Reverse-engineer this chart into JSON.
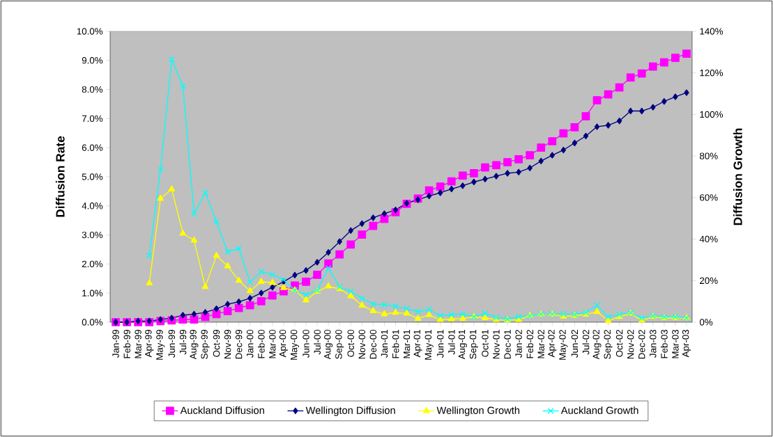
{
  "chart_data": {
    "type": "line",
    "ylabel": "Diffusion Rate",
    "y2label": "Diffusion Growth",
    "categories": [
      "Jan-99",
      "Feb-99",
      "Mar-99",
      "Apr-99",
      "May-99",
      "Jun-99",
      "Jul-99",
      "Aug-99",
      "Sep-99",
      "Oct-99",
      "Nov-99",
      "Dec-99",
      "Jan-00",
      "Feb-00",
      "Mar-00",
      "Apr-00",
      "May-00",
      "Jun-00",
      "Jul-00",
      "Aug-00",
      "Sep-00",
      "Oct-00",
      "Nov-00",
      "Dec-00",
      "Jan-01",
      "Feb-01",
      "Mar-01",
      "Apr-01",
      "May-01",
      "Jun-01",
      "Jul-01",
      "Aug-01",
      "Sep-01",
      "Oct-01",
      "Nov-01",
      "Dec-01",
      "Jan-02",
      "Feb-02",
      "Mar-02",
      "Apr-02",
      "May-02",
      "Jun-02",
      "Jul-02",
      "Aug-02",
      "Sep-02",
      "Oct-02",
      "Nov-02",
      "Dec-02",
      "Jan-03",
      "Feb-03",
      "Mar-03",
      "Apr-03"
    ],
    "series": [
      {
        "name": "Auckland Diffusion",
        "color": "#ff00ff",
        "marker": "square",
        "values": [
          0,
          0,
          0,
          0,
          0.04,
          0.06,
          0.09,
          0.09,
          0.18,
          0.28,
          0.38,
          0.49,
          0.58,
          0.72,
          0.92,
          1.06,
          1.26,
          1.39,
          1.63,
          2.02,
          2.33,
          2.67,
          3.01,
          3.31,
          3.55,
          3.78,
          4.07,
          4.25,
          4.53,
          4.66,
          4.84,
          5.04,
          5.12,
          5.32,
          5.4,
          5.5,
          5.6,
          5.74,
          6.0,
          6.22,
          6.49,
          6.7,
          7.08,
          7.63,
          7.83,
          8.07,
          8.41,
          8.55,
          8.79,
          8.93,
          9.09,
          9.23
        ]
      },
      {
        "name": "Wellington Diffusion",
        "color": "#000080",
        "marker": "diamond",
        "values": [
          0,
          0,
          0.04,
          0.04,
          0.09,
          0.14,
          0.24,
          0.28,
          0.34,
          0.46,
          0.62,
          0.7,
          0.82,
          1.0,
          1.2,
          1.39,
          1.62,
          1.78,
          2.06,
          2.4,
          2.77,
          3.15,
          3.39,
          3.59,
          3.73,
          3.86,
          4.09,
          4.21,
          4.34,
          4.45,
          4.58,
          4.69,
          4.82,
          4.92,
          5.02,
          5.12,
          5.16,
          5.3,
          5.54,
          5.74,
          5.92,
          6.16,
          6.4,
          6.72,
          6.77,
          6.92,
          7.26,
          7.26,
          7.39,
          7.59,
          7.75,
          7.89
        ]
      },
      {
        "name": "Wellington Growth",
        "color": "#ffff00",
        "marker": "triangle",
        "axis": "y2",
        "values": [
          null,
          null,
          null,
          18.8,
          59.5,
          64,
          42.7,
          39.4,
          17,
          32,
          27,
          20,
          15,
          19.5,
          19,
          16.5,
          15.4,
          10.6,
          14.8,
          17.3,
          16,
          12.6,
          8.1,
          5.4,
          3.9,
          4.6,
          4.2,
          1.7,
          3.5,
          1.2,
          1.5,
          1.7,
          2.6,
          2,
          1.2,
          0.9,
          1.2,
          3.1,
          3.7,
          3.7,
          2.8,
          3.1,
          3.7,
          5,
          0.6,
          2.6,
          4.2,
          0.9,
          2.6,
          2,
          2,
          2
        ]
      },
      {
        "name": "Auckland Growth",
        "color": "#00ffff",
        "marker": "cross",
        "axis": "y2",
        "values": [
          null,
          null,
          null,
          32.1,
          73.4,
          126.5,
          113.6,
          52.2,
          62.3,
          48.3,
          33.8,
          35.5,
          19.3,
          24.3,
          22.9,
          20.4,
          15.4,
          13.2,
          15.4,
          26,
          17,
          14.8,
          11.5,
          8.7,
          8.4,
          7.6,
          6.5,
          5,
          6.1,
          3.1,
          3.5,
          3.9,
          2.6,
          4.2,
          2.3,
          1.5,
          2.6,
          3.1,
          3.9,
          3.9,
          3.9,
          3.7,
          4.6,
          8.1,
          2.6,
          3.7,
          4.6,
          2,
          3.1,
          2.6,
          2.6,
          2
        ]
      }
    ],
    "ylim": [
      0,
      10
    ],
    "yticks": [
      {
        "value": 0,
        "label": "0.0%"
      },
      {
        "value": 1,
        "label": "1.0%"
      },
      {
        "value": 2,
        "label": "2.0%"
      },
      {
        "value": 3,
        "label": "3.0%"
      },
      {
        "value": 4,
        "label": "4.0%"
      },
      {
        "value": 5,
        "label": "5.0%"
      },
      {
        "value": 6,
        "label": "6.0%"
      },
      {
        "value": 7,
        "label": "7.0%"
      },
      {
        "value": 8,
        "label": "8.0%"
      },
      {
        "value": 9,
        "label": "9.0%"
      },
      {
        "value": 10,
        "label": "10.0%"
      }
    ],
    "y2lim": [
      0,
      140
    ],
    "y2ticks": [
      {
        "value": 0,
        "label": "0%"
      },
      {
        "value": 20,
        "label": "20%"
      },
      {
        "value": 40,
        "label": "40%"
      },
      {
        "value": 60,
        "label": "60%"
      },
      {
        "value": 80,
        "label": "80%"
      },
      {
        "value": 100,
        "label": "100%"
      },
      {
        "value": 120,
        "label": "120%"
      },
      {
        "value": 140,
        "label": "140%"
      }
    ],
    "legend": "bottom"
  }
}
